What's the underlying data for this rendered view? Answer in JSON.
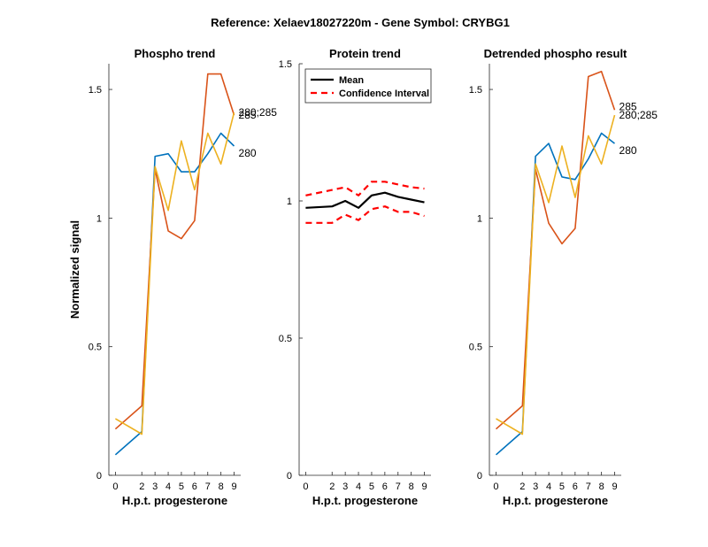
{
  "figure": {
    "suptitle": "Reference:  Xelaev18027220m - Gene Symbol:  CRYBG1"
  },
  "chart_data": [
    {
      "type": "line",
      "title": "Phospho trend",
      "xlabel": "H.p.t. progesterone",
      "ylabel": "Normalized signal",
      "x": [
        0,
        2,
        3,
        4,
        5,
        6,
        7,
        8,
        9
      ],
      "x_tick_labels": [
        "0",
        "2",
        "3",
        "4",
        "5",
        "6",
        "7",
        "8",
        "9"
      ],
      "xlim": [
        -0.5,
        9.5
      ],
      "ylim": [
        0,
        1.6
      ],
      "y_ticks": [
        0,
        0.5,
        1,
        1.5
      ],
      "y_tick_labels": [
        "0",
        "0.5",
        "1",
        "1.5"
      ],
      "grid": false,
      "series": [
        {
          "label": "280",
          "color": "#0072BD",
          "values": [
            0.08,
            0.17,
            1.24,
            1.25,
            1.18,
            1.18,
            1.25,
            1.33,
            1.28
          ]
        },
        {
          "label": "285",
          "color": "#D95319",
          "values": [
            0.18,
            0.27,
            1.19,
            0.95,
            0.92,
            0.99,
            1.56,
            1.56,
            1.4
          ]
        },
        {
          "label": "280;285",
          "color": "#EDB120",
          "values": [
            0.22,
            0.16,
            1.2,
            1.03,
            1.3,
            1.11,
            1.33,
            1.21,
            1.41
          ]
        }
      ],
      "end_labels": [
        "280",
        "285",
        "280;285"
      ]
    },
    {
      "type": "line",
      "title": "Protein trend",
      "xlabel": "H.p.t. progesterone",
      "x": [
        0,
        2,
        3,
        4,
        5,
        6,
        7,
        8,
        9
      ],
      "x_tick_labels": [
        "0",
        "2",
        "3",
        "4",
        "5",
        "6",
        "7",
        "8",
        "9"
      ],
      "xlim": [
        -0.5,
        9.5
      ],
      "ylim": [
        0,
        1.5
      ],
      "y_ticks": [
        0,
        0.5,
        1,
        1.5
      ],
      "y_tick_labels": [
        "0",
        "0.5",
        "1",
        "1.5"
      ],
      "grid": false,
      "legend": {
        "position": "top-left",
        "entries": [
          "Mean",
          "Confidence Interval"
        ]
      },
      "series": [
        {
          "name": "Mean",
          "color": "#000000",
          "style": "solid",
          "values": [
            0.975,
            0.98,
            1.0,
            0.975,
            1.02,
            1.03,
            1.015,
            1.005,
            0.995
          ]
        },
        {
          "name": "Confidence Interval",
          "color": "#FF0000",
          "style": "dashed",
          "values": [
            1.02,
            1.04,
            1.05,
            1.02,
            1.07,
            1.07,
            1.06,
            1.05,
            1.045
          ]
        },
        {
          "name": "Confidence Interval",
          "color": "#FF0000",
          "style": "dashed",
          "values": [
            0.92,
            0.92,
            0.95,
            0.93,
            0.97,
            0.98,
            0.96,
            0.96,
            0.945
          ]
        }
      ]
    },
    {
      "type": "line",
      "title": "Detrended phospho result",
      "xlabel": "H.p.t. progesterone",
      "x": [
        0,
        2,
        3,
        4,
        5,
        6,
        7,
        8,
        9
      ],
      "x_tick_labels": [
        "0",
        "2",
        "3",
        "4",
        "5",
        "6",
        "7",
        "8",
        "9"
      ],
      "xlim": [
        -0.5,
        9.5
      ],
      "ylim": [
        0,
        1.6
      ],
      "y_ticks": [
        0,
        0.5,
        1,
        1.5
      ],
      "y_tick_labels": [
        "0",
        "0.5",
        "1",
        "1.5"
      ],
      "grid": false,
      "series": [
        {
          "label": "280",
          "color": "#0072BD",
          "values": [
            0.08,
            0.17,
            1.24,
            1.29,
            1.16,
            1.15,
            1.23,
            1.33,
            1.29
          ]
        },
        {
          "label": "285",
          "color": "#D95319",
          "values": [
            0.18,
            0.27,
            1.19,
            0.98,
            0.9,
            0.96,
            1.55,
            1.57,
            1.42
          ]
        },
        {
          "label": "280;285",
          "color": "#EDB120",
          "values": [
            0.22,
            0.16,
            1.21,
            1.06,
            1.28,
            1.08,
            1.32,
            1.21,
            1.4
          ]
        }
      ],
      "end_labels": [
        "285",
        "280;285",
        "280"
      ]
    }
  ]
}
